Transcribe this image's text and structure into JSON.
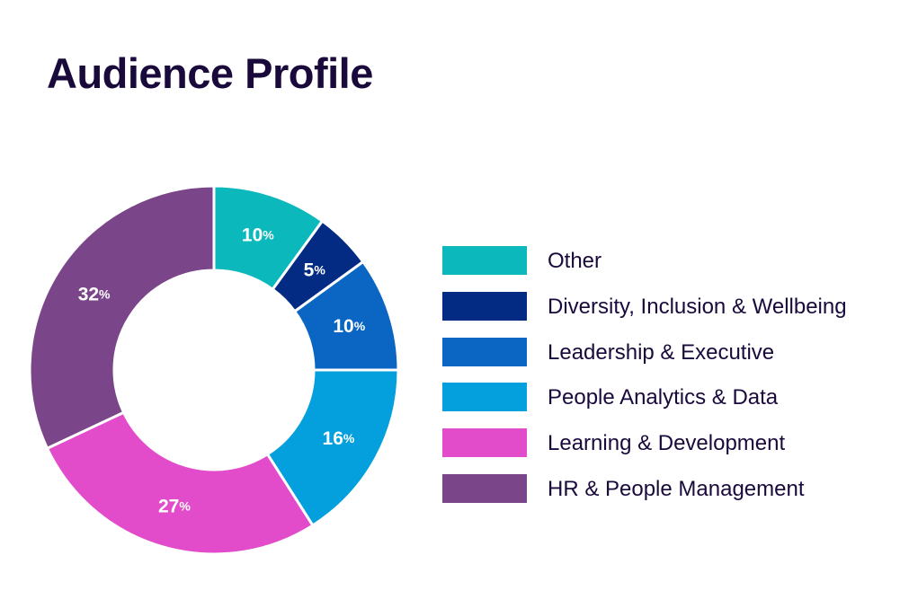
{
  "title": "Audience Profile",
  "chart_data": {
    "type": "pie",
    "variant": "donut",
    "title": "Audience Profile",
    "legend_position": "right",
    "slices": [
      {
        "label": "Other",
        "value": 10,
        "color": "#0bb8bc"
      },
      {
        "label": "Diversity, Inclusion & Wellbeing",
        "value": 5,
        "color": "#032b84"
      },
      {
        "label": "Leadership & Executive",
        "value": 10,
        "color": "#0a66c2"
      },
      {
        "label": "People Analytics & Data",
        "value": 16,
        "color": "#03a0dd"
      },
      {
        "label": "Learning & Development",
        "value": 27,
        "color": "#e24bc9"
      },
      {
        "label": "HR & People Management",
        "value": 32,
        "color": "#7b4689"
      }
    ],
    "value_suffix": "%"
  }
}
